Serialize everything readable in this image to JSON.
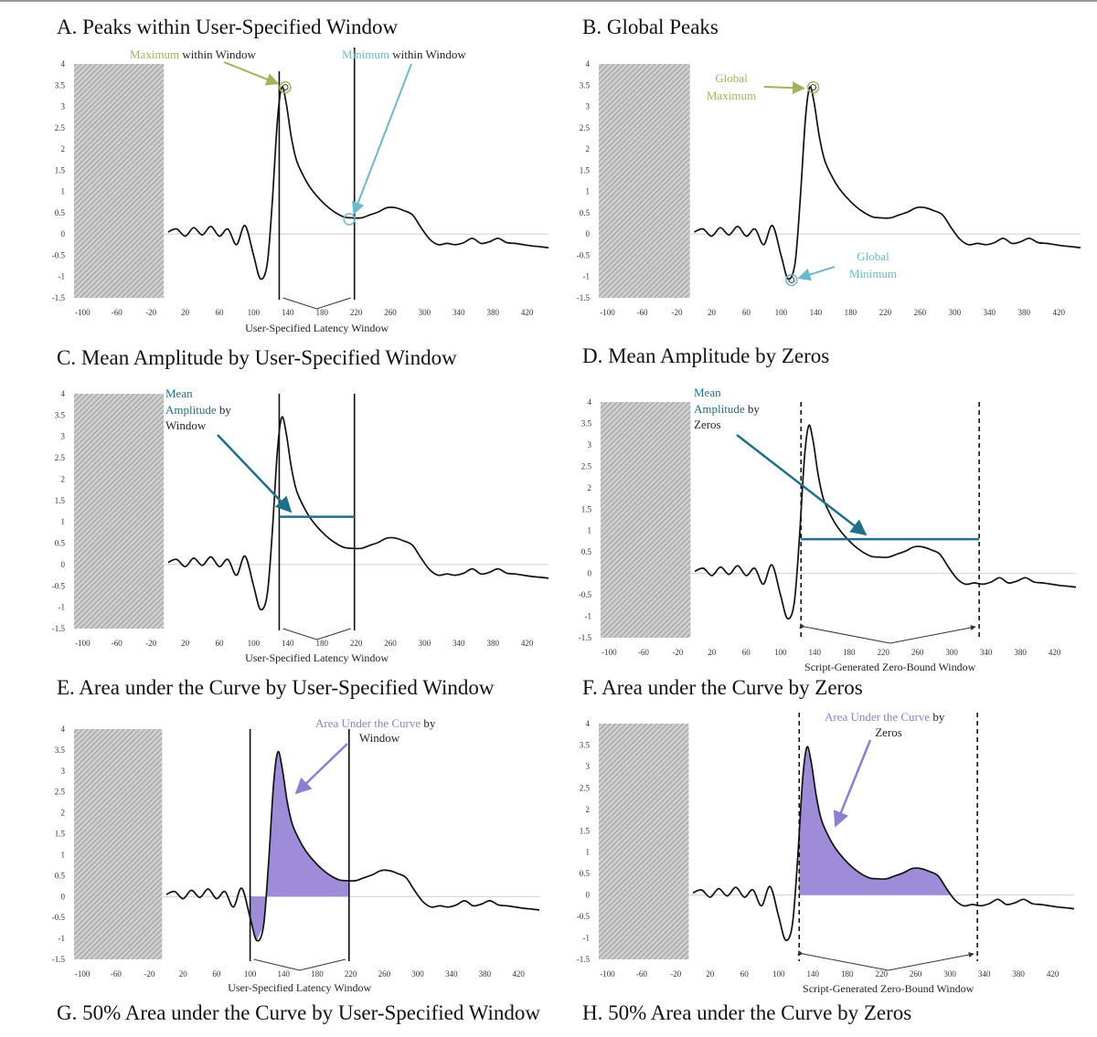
{
  "colors": {
    "curve": "#111111",
    "green": "#a3b25a",
    "lightblue": "#6cb8cf",
    "teal": "#1f6f8b",
    "purple": "#8c7fd1",
    "purple_fill": "#9a86d6",
    "hatch": "#9a9a9a"
  },
  "titles": {
    "A": "A. Peaks within User-Specified Window",
    "B": "B. Global Peaks",
    "C": "C. Mean Amplitude by User-Specified Window",
    "D": "D. Mean Amplitude by Zeros",
    "E": "E. Area under the Curve by User-Specified Window",
    "F": "F. Area under the Curve by Zeros",
    "G": "G. 50% Area under the Curve by User-Specified Window",
    "H": "H. 50% Area under the Curve by Zeros"
  },
  "axis_labels": {
    "user_window": "User-Specified Latency Window",
    "zero_window": "Script-Generated Zero-Bound Window"
  },
  "annotations": {
    "A_max_word": "Maximum",
    "A_max_rest": " within Window",
    "A_min_word": "Minimum",
    "A_min_rest": " within Window",
    "B_max_1": "Global",
    "B_max_2": "Maximum",
    "B_min_1": "Global",
    "B_min_2": "Minimum",
    "C_1": "Mean",
    "C_2a": "Amplitude",
    "C_2b": " by",
    "C_3": "Window",
    "D_1": "Mean",
    "D_2a": "Amplitude",
    "D_2b": " by",
    "D_3": "Zeros",
    "E_1a": "Area Under the Curve",
    "E_1b": " by",
    "E_2": "Window",
    "F_1a": "Area Under the Curve",
    "F_1b": " by",
    "F_2": "Zeros"
  },
  "chart_data": [
    {
      "id": "A",
      "type": "line",
      "x_ticks": [
        -100,
        -60,
        -20,
        20,
        60,
        100,
        140,
        180,
        220,
        260,
        300,
        340,
        380,
        420
      ],
      "y_ticks": [
        4,
        3.5,
        3,
        2.5,
        2,
        1.5,
        1,
        0.5,
        0,
        -0.5,
        -1,
        -1.5
      ],
      "xlim": [
        -110,
        445
      ],
      "ylim": [
        -1.5,
        4
      ],
      "baseline_hatch": [
        -110,
        -5
      ],
      "window": [
        130,
        218
      ],
      "marked_max": [
        137,
        3.45
      ],
      "marked_min": [
        212,
        0.35
      ],
      "series": {
        "x": [
          0,
          10,
          20,
          30,
          40,
          50,
          60,
          70,
          80,
          90,
          100,
          108,
          116,
          122,
          128,
          133,
          138,
          144,
          150,
          158,
          166,
          176,
          186,
          196,
          206,
          216,
          226,
          236,
          246,
          256,
          266,
          276,
          286,
          296,
          306,
          316,
          326,
          336,
          346,
          356,
          366,
          376,
          386,
          396,
          406,
          416,
          426,
          436,
          445
        ],
        "y": [
          0.05,
          0.12,
          -0.05,
          0.15,
          -0.02,
          0.18,
          -0.05,
          0.12,
          -0.25,
          0.2,
          -0.5,
          -1.05,
          -0.7,
          0.8,
          2.7,
          3.45,
          3.1,
          2.3,
          1.75,
          1.38,
          1.1,
          0.85,
          0.65,
          0.5,
          0.4,
          0.38,
          0.38,
          0.45,
          0.52,
          0.62,
          0.62,
          0.55,
          0.45,
          0.15,
          -0.12,
          -0.25,
          -0.22,
          -0.25,
          -0.2,
          -0.1,
          -0.22,
          -0.18,
          -0.1,
          -0.2,
          -0.22,
          -0.25,
          -0.28,
          -0.3,
          -0.32
        ]
      }
    },
    {
      "id": "B",
      "type": "line",
      "x_ticks": [
        -100,
        -60,
        -20,
        20,
        60,
        100,
        140,
        180,
        220,
        260,
        300,
        340,
        380,
        420
      ],
      "y_ticks": [
        4,
        3.5,
        3,
        2.5,
        2,
        1.5,
        1,
        0.5,
        0,
        -0.5,
        -1,
        -1.5
      ],
      "xlim": [
        -110,
        445
      ],
      "ylim": [
        -1.5,
        4
      ],
      "baseline_hatch": [
        -110,
        -5
      ],
      "global_max": [
        137,
        3.45
      ],
      "global_min": [
        112,
        -1.08
      ]
    },
    {
      "id": "C",
      "type": "line",
      "x_ticks": [
        -100,
        -60,
        -20,
        20,
        60,
        100,
        140,
        180,
        220,
        260,
        300,
        340,
        380,
        420
      ],
      "y_ticks": [
        4,
        3.5,
        3,
        2.5,
        2,
        1.5,
        1,
        0.5,
        0,
        -0.5,
        -1,
        -1.5
      ],
      "xlim": [
        -110,
        445
      ],
      "ylim": [
        -1.5,
        4
      ],
      "baseline_hatch": [
        -110,
        -5
      ],
      "window": [
        130,
        218
      ],
      "mean_amplitude": 1.12
    },
    {
      "id": "D",
      "type": "line",
      "x_ticks": [
        -100,
        -60,
        -20,
        20,
        60,
        100,
        140,
        180,
        220,
        260,
        300,
        340,
        380,
        420
      ],
      "y_ticks": [
        4,
        3.5,
        3,
        2.5,
        2,
        1.5,
        1,
        0.5,
        0,
        -0.5,
        -1,
        -1.5
      ],
      "xlim": [
        -110,
        445
      ],
      "ylim": [
        -1.5,
        4
      ],
      "baseline_hatch": [
        -110,
        -5
      ],
      "window": [
        124,
        332
      ],
      "mean_amplitude": 0.8
    },
    {
      "id": "E",
      "type": "area",
      "x_ticks": [
        -100,
        -60,
        -20,
        20,
        60,
        100,
        140,
        180,
        220,
        260,
        300,
        340,
        380,
        420
      ],
      "y_ticks": [
        4,
        3.5,
        3,
        2.5,
        2,
        1.5,
        1,
        0.5,
        0,
        -0.5,
        -1,
        -1.5
      ],
      "xlim": [
        -110,
        445
      ],
      "ylim": [
        -1.5,
        4
      ],
      "baseline_hatch": [
        -110,
        -5
      ],
      "window": [
        100,
        218
      ]
    },
    {
      "id": "F",
      "type": "area",
      "x_ticks": [
        -100,
        -60,
        -20,
        20,
        60,
        100,
        140,
        180,
        220,
        260,
        300,
        340,
        380,
        420
      ],
      "y_ticks": [
        4,
        3.5,
        3,
        2.5,
        2,
        1.5,
        1,
        0.5,
        0,
        -0.5,
        -1,
        -1.5
      ],
      "xlim": [
        -110,
        445
      ],
      "ylim": [
        -1.5,
        4
      ],
      "baseline_hatch": [
        -110,
        -5
      ],
      "window": [
        124,
        332
      ]
    }
  ]
}
